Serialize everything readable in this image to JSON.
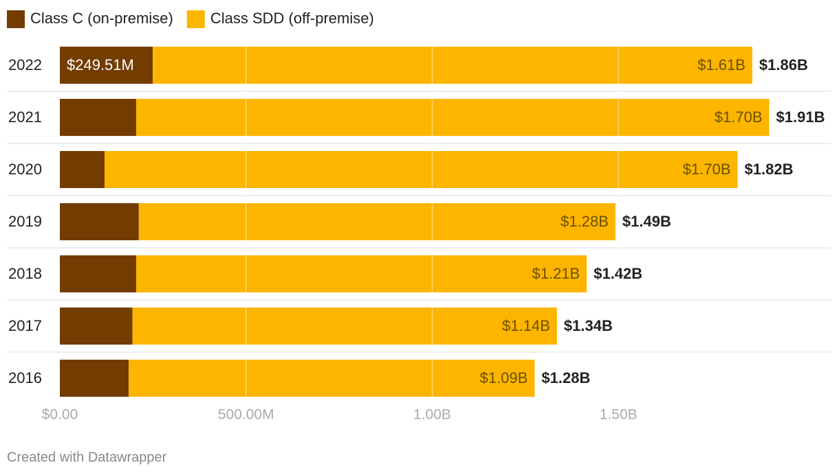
{
  "chart_data": {
    "type": "stacked-bar-horizontal",
    "categories": [
      "2022",
      "2021",
      "2020",
      "2019",
      "2018",
      "2017",
      "2016"
    ],
    "series": [
      {
        "name": "Class C (on-premise)",
        "color": "#733c00",
        "values": [
          249510000,
          205000000,
          120000000,
          212000000,
          205000000,
          195000000,
          185000000
        ],
        "value_labels": [
          "$249.51M",
          null,
          null,
          null,
          null,
          null,
          null
        ]
      },
      {
        "name": "Class SDD (off-premise)",
        "color": "#fdb500",
        "values": [
          1610000000,
          1700000000,
          1700000000,
          1280000000,
          1210000000,
          1140000000,
          1090000000
        ],
        "value_labels": [
          "$1.61B",
          "$1.70B",
          "$1.70B",
          "$1.28B",
          "$1.21B",
          "$1.14B",
          "$1.09B"
        ]
      }
    ],
    "total_labels": [
      "$1.86B",
      "$1.91B",
      "$1.82B",
      "$1.49B",
      "$1.42B",
      "$1.34B",
      "$1.28B"
    ],
    "xlim": [
      0,
      2000000000
    ],
    "xticks": [
      {
        "value": 0,
        "label": "$0.00"
      },
      {
        "value": 500000000,
        "label": "500.00M"
      },
      {
        "value": 1000000000,
        "label": "1.00B"
      },
      {
        "value": 1500000000,
        "label": "1.50B"
      }
    ],
    "grid": true,
    "footer": "Created with Datawrapper"
  }
}
